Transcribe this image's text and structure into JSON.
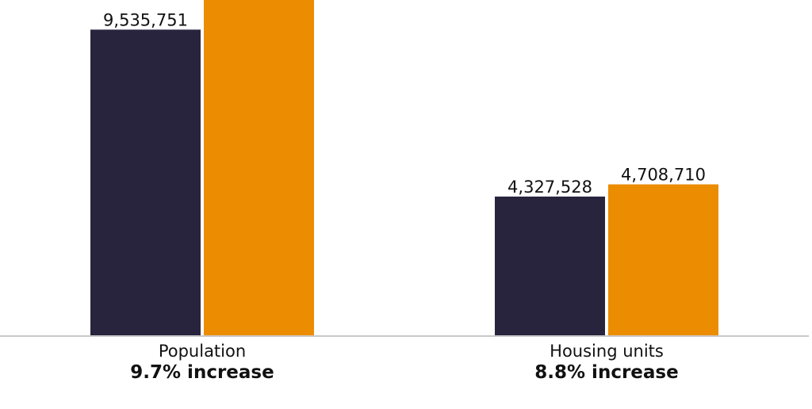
{
  "chart_data": {
    "type": "bar",
    "categories": [
      "Population",
      "Housing units"
    ],
    "category_notes": [
      "9.7% increase",
      "8.8% increase"
    ],
    "series": [
      {
        "color": "#29243d",
        "values": [
          9535751,
          4327528
        ],
        "value_labels": [
          "9,535,751",
          "4,327,528"
        ]
      },
      {
        "color": "#ec8c00",
        "values": [
          10460000,
          4708710
        ],
        "value_labels": [
          "",
          "4,708,710"
        ]
      }
    ],
    "ylim": [
      0,
      10460000
    ],
    "grid": false,
    "legend": "none"
  }
}
